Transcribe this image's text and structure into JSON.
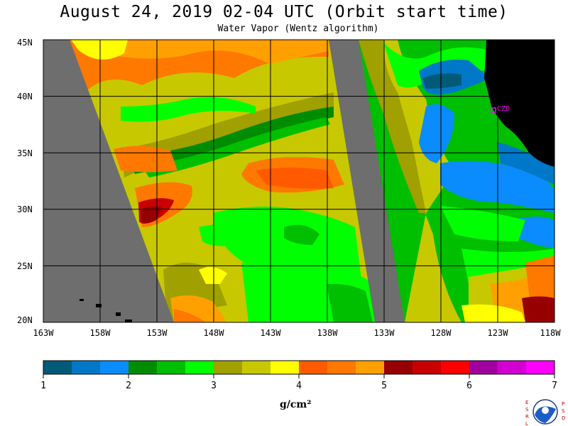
{
  "title": "August 24, 2019  02-04 UTC  (Orbit start time)",
  "subtitle": "Water Vapor (Wentz algorithm)",
  "lat_ticks": [
    "45N",
    "40N",
    "35N",
    "30N",
    "25N",
    "20N"
  ],
  "lon_ticks": [
    "163W",
    "158W",
    "153W",
    "148W",
    "143W",
    "138W",
    "133W",
    "128W",
    "123W",
    "118W"
  ],
  "station_label": "CZD",
  "colorbar": {
    "ticks": [
      "1",
      "2",
      "3",
      "4",
      "5",
      "6",
      "7"
    ],
    "unit": "g/cm²",
    "colors": [
      "#005a78",
      "#0078c8",
      "#0a8cff",
      "#008c00",
      "#00be00",
      "#00ff00",
      "#a0a000",
      "#c8c800",
      "#ffff00",
      "#ff5a00",
      "#ff7800",
      "#ffa000",
      "#960000",
      "#c80000",
      "#ff0000",
      "#a000a0",
      "#d200d2",
      "#ff00ff"
    ]
  },
  "logo": {
    "left_text": "ESRL",
    "right_text": "PSD",
    "center_text": "NOAA"
  }
}
